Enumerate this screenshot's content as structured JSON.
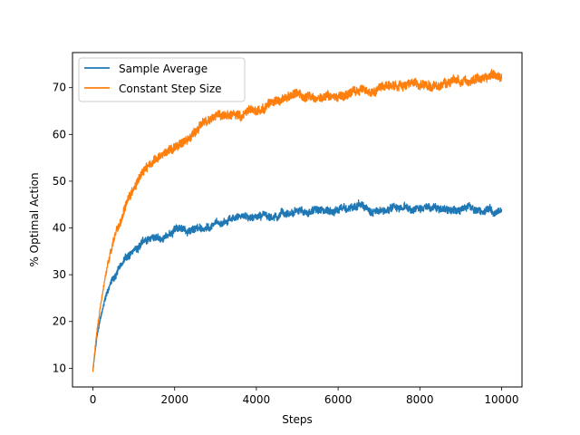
{
  "chart_data": {
    "type": "line",
    "title": "",
    "xlabel": "Steps",
    "ylabel": "% Optimal Action",
    "xlim": [
      -500,
      10500
    ],
    "ylim": [
      6,
      77.5
    ],
    "xticks": [
      0,
      2000,
      4000,
      6000,
      8000,
      10000
    ],
    "yticks": [
      10,
      20,
      30,
      40,
      50,
      60,
      70
    ],
    "legend_position": "top-left",
    "grid": false,
    "series": [
      {
        "name": "Sample Average",
        "color": "#1f77b4",
        "noise_band": 1.5,
        "x": [
          0,
          100,
          200,
          300,
          400,
          500,
          600,
          700,
          800,
          1000,
          1200,
          1400,
          1600,
          1800,
          2000,
          2500,
          3000,
          3500,
          4000,
          4500,
          5000,
          5500,
          6000,
          6500,
          7000,
          7500,
          8000,
          8500,
          9000,
          9500,
          10000
        ],
        "values": [
          9.5,
          17,
          21.5,
          25,
          27.5,
          29.5,
          31,
          32.5,
          33.5,
          35.5,
          36.5,
          37.5,
          38,
          38.8,
          39.5,
          40.5,
          41.3,
          42,
          43,
          43.2,
          43,
          43.5,
          44.2,
          44.5,
          43.8,
          43.5,
          43.8,
          44,
          43.8,
          43.5,
          43
        ]
      },
      {
        "name": "Constant Step Size",
        "color": "#ff7f0e",
        "noise_band": 1.8,
        "x": [
          0,
          100,
          200,
          300,
          400,
          500,
          600,
          700,
          800,
          1000,
          1200,
          1400,
          1600,
          1800,
          2000,
          2500,
          3000,
          3500,
          4000,
          4500,
          5000,
          5500,
          6000,
          6500,
          7000,
          7500,
          8000,
          8500,
          9000,
          9500,
          10000
        ],
        "values": [
          9.5,
          18,
          24.5,
          29.5,
          33.5,
          37,
          40,
          42.5,
          44.5,
          48,
          51,
          53.5,
          55.5,
          57,
          58,
          61,
          63,
          64.2,
          65,
          66.5,
          67.2,
          67.8,
          68.5,
          69,
          69.8,
          70.2,
          70.5,
          71,
          71.5,
          72,
          72.5
        ]
      }
    ]
  }
}
